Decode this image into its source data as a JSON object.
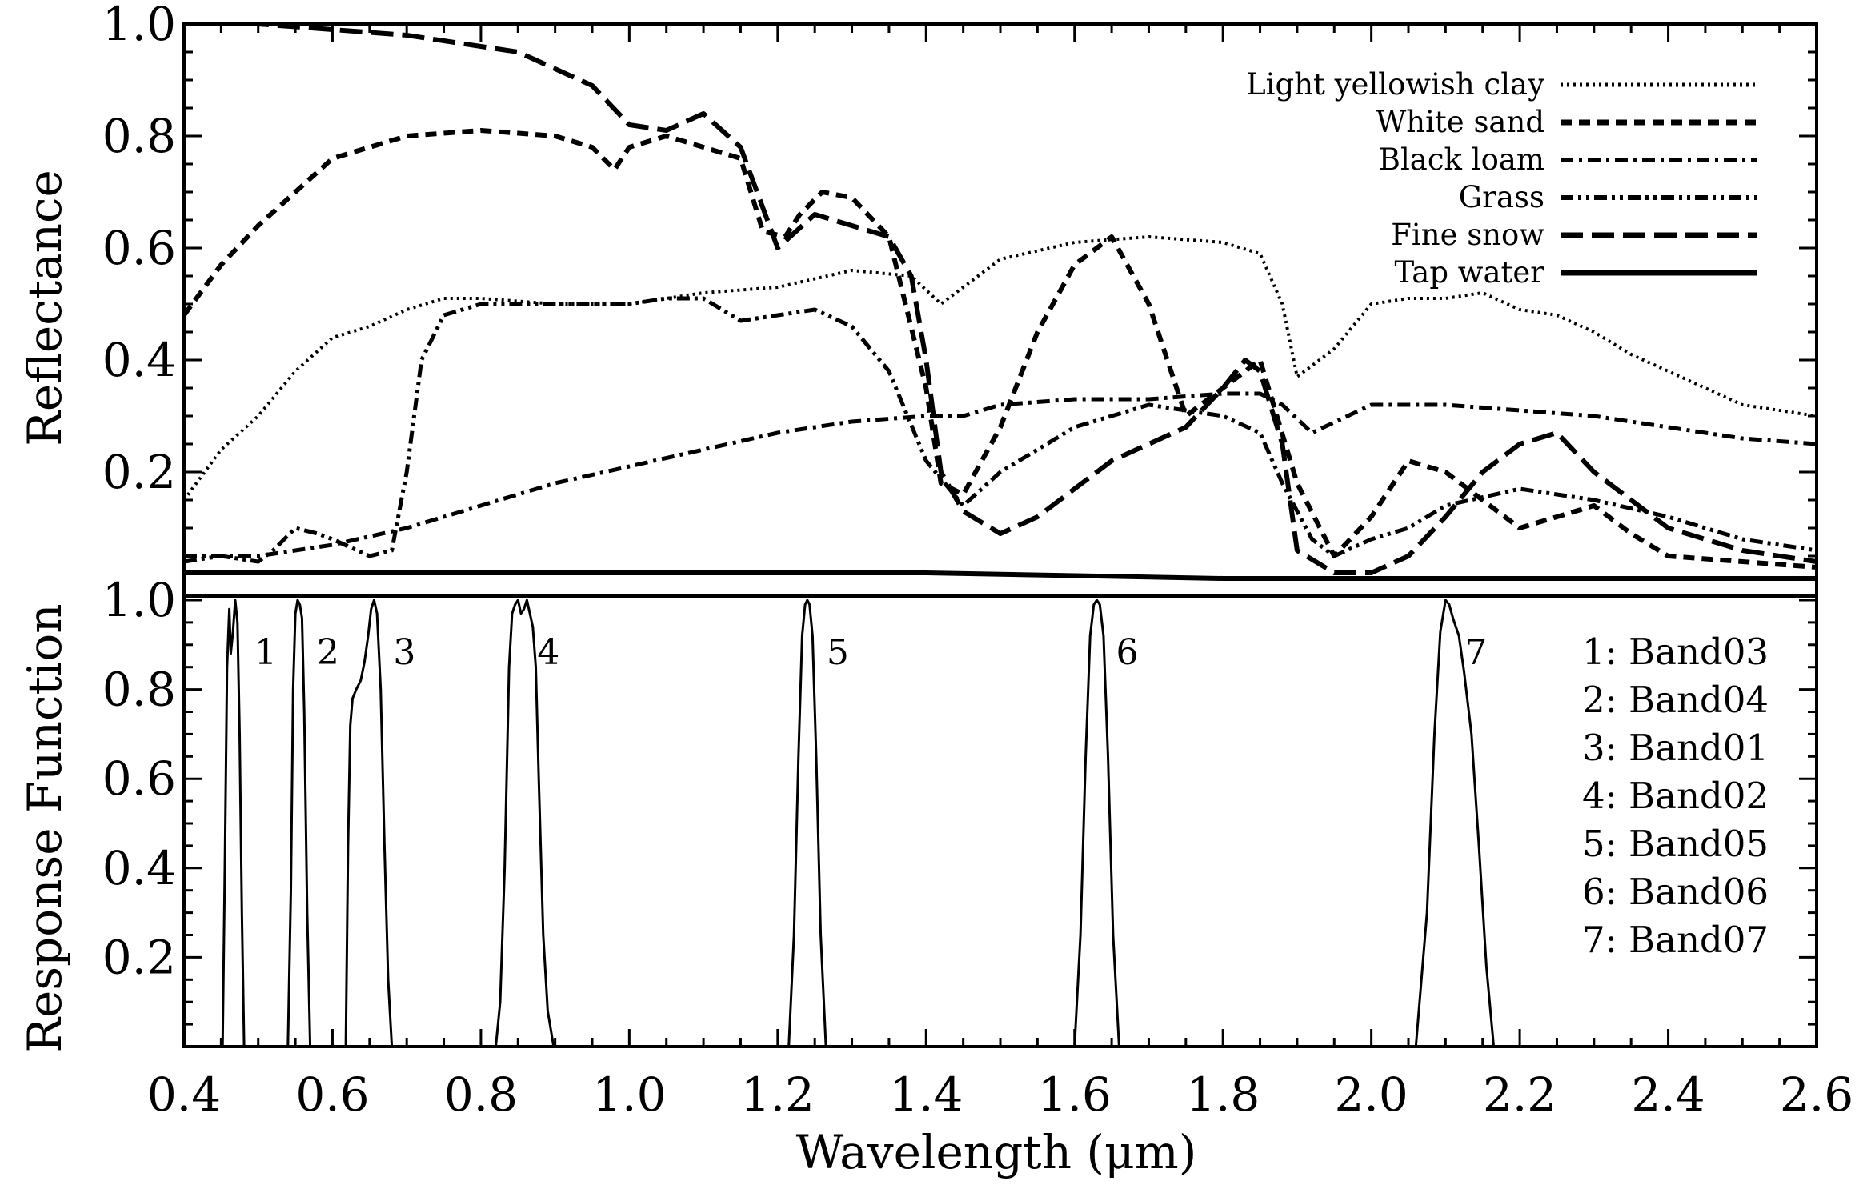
{
  "chart_data": [
    {
      "type": "line",
      "panel": "top",
      "ylabel": "Reflectance",
      "xlim": [
        0.4,
        2.6
      ],
      "ylim": [
        0.0,
        1.0
      ],
      "yticks": [
        0.2,
        0.4,
        0.6,
        0.8,
        1.0
      ],
      "ytick_labels": [
        "0.2",
        "0.4",
        "0.6",
        "0.8",
        "1.0"
      ],
      "legend_position": "top-right",
      "series": [
        {
          "name": "Light yellowish clay",
          "style": "dotted",
          "x": [
            0.4,
            0.45,
            0.5,
            0.55,
            0.6,
            0.65,
            0.7,
            0.75,
            0.8,
            0.9,
            1.0,
            1.1,
            1.2,
            1.3,
            1.38,
            1.42,
            1.5,
            1.6,
            1.7,
            1.8,
            1.85,
            1.88,
            1.9,
            1.95,
            2.0,
            2.05,
            2.1,
            2.15,
            2.2,
            2.25,
            2.3,
            2.35,
            2.4,
            2.45,
            2.5,
            2.6
          ],
          "y": [
            0.15,
            0.24,
            0.3,
            0.38,
            0.44,
            0.46,
            0.49,
            0.51,
            0.51,
            0.5,
            0.5,
            0.52,
            0.53,
            0.56,
            0.55,
            0.5,
            0.58,
            0.61,
            0.62,
            0.61,
            0.59,
            0.5,
            0.37,
            0.42,
            0.5,
            0.51,
            0.51,
            0.52,
            0.49,
            0.48,
            0.45,
            0.41,
            0.38,
            0.35,
            0.32,
            0.3
          ]
        },
        {
          "name": "White sand",
          "style": "dashed",
          "x": [
            0.4,
            0.45,
            0.5,
            0.55,
            0.6,
            0.65,
            0.7,
            0.8,
            0.9,
            0.95,
            0.98,
            1.0,
            1.05,
            1.1,
            1.15,
            1.18,
            1.21,
            1.23,
            1.26,
            1.3,
            1.35,
            1.4,
            1.42,
            1.45,
            1.5,
            1.55,
            1.6,
            1.65,
            1.7,
            1.75,
            1.8,
            1.85,
            1.9,
            1.95,
            2.0,
            2.05,
            2.1,
            2.15,
            2.2,
            2.25,
            2.3,
            2.35,
            2.4,
            2.5,
            2.6
          ],
          "y": [
            0.48,
            0.57,
            0.64,
            0.7,
            0.76,
            0.78,
            0.8,
            0.81,
            0.8,
            0.78,
            0.74,
            0.78,
            0.8,
            0.78,
            0.76,
            0.63,
            0.62,
            0.66,
            0.7,
            0.69,
            0.62,
            0.35,
            0.18,
            0.16,
            0.28,
            0.45,
            0.57,
            0.62,
            0.5,
            0.3,
            0.35,
            0.4,
            0.18,
            0.05,
            0.12,
            0.22,
            0.2,
            0.15,
            0.1,
            0.12,
            0.14,
            0.09,
            0.05,
            0.04,
            0.03
          ]
        },
        {
          "name": "Black loam",
          "style": "dash-dot",
          "x": [
            0.4,
            0.5,
            0.6,
            0.7,
            0.8,
            0.9,
            1.0,
            1.1,
            1.2,
            1.3,
            1.4,
            1.45,
            1.5,
            1.6,
            1.7,
            1.8,
            1.85,
            1.88,
            1.92,
            2.0,
            2.1,
            2.2,
            2.3,
            2.4,
            2.5,
            2.6
          ],
          "y": [
            0.05,
            0.05,
            0.07,
            0.1,
            0.14,
            0.18,
            0.21,
            0.24,
            0.27,
            0.29,
            0.3,
            0.3,
            0.32,
            0.33,
            0.33,
            0.34,
            0.34,
            0.32,
            0.27,
            0.32,
            0.32,
            0.31,
            0.3,
            0.28,
            0.26,
            0.25
          ]
        },
        {
          "name": "Grass",
          "style": "dash-dot-dot",
          "x": [
            0.4,
            0.45,
            0.5,
            0.52,
            0.55,
            0.58,
            0.6,
            0.65,
            0.68,
            0.7,
            0.72,
            0.75,
            0.8,
            0.9,
            1.0,
            1.05,
            1.1,
            1.15,
            1.2,
            1.25,
            1.3,
            1.35,
            1.4,
            1.45,
            1.5,
            1.6,
            1.7,
            1.75,
            1.8,
            1.85,
            1.88,
            1.92,
            1.95,
            2.0,
            2.05,
            2.1,
            2.2,
            2.25,
            2.3,
            2.4,
            2.5,
            2.6
          ],
          "y": [
            0.04,
            0.05,
            0.04,
            0.06,
            0.1,
            0.09,
            0.08,
            0.05,
            0.06,
            0.2,
            0.4,
            0.48,
            0.5,
            0.5,
            0.5,
            0.51,
            0.51,
            0.47,
            0.48,
            0.49,
            0.46,
            0.38,
            0.22,
            0.14,
            0.2,
            0.28,
            0.32,
            0.31,
            0.3,
            0.27,
            0.18,
            0.08,
            0.05,
            0.08,
            0.1,
            0.14,
            0.17,
            0.16,
            0.15,
            0.12,
            0.08,
            0.06
          ]
        },
        {
          "name": "Fine snow",
          "style": "long-dash",
          "x": [
            0.4,
            0.5,
            0.6,
            0.7,
            0.8,
            0.85,
            0.9,
            0.95,
            1.0,
            1.05,
            1.1,
            1.15,
            1.2,
            1.25,
            1.3,
            1.35,
            1.38,
            1.4,
            1.42,
            1.45,
            1.5,
            1.55,
            1.6,
            1.65,
            1.7,
            1.75,
            1.8,
            1.83,
            1.85,
            1.88,
            1.9,
            1.95,
            2.0,
            2.05,
            2.1,
            2.15,
            2.2,
            2.25,
            2.3,
            2.4,
            2.5,
            2.6
          ],
          "y": [
            1.0,
            1.0,
            0.99,
            0.98,
            0.96,
            0.95,
            0.92,
            0.89,
            0.82,
            0.81,
            0.84,
            0.78,
            0.6,
            0.66,
            0.64,
            0.62,
            0.55,
            0.4,
            0.2,
            0.13,
            0.09,
            0.12,
            0.17,
            0.22,
            0.25,
            0.28,
            0.35,
            0.4,
            0.38,
            0.25,
            0.06,
            0.02,
            0.02,
            0.05,
            0.12,
            0.2,
            0.25,
            0.27,
            0.2,
            0.1,
            0.06,
            0.04
          ]
        },
        {
          "name": "Tap water",
          "style": "solid",
          "x": [
            0.4,
            0.5,
            0.6,
            0.8,
            1.0,
            1.4,
            1.8,
            2.2,
            2.6
          ],
          "y": [
            0.02,
            0.02,
            0.02,
            0.02,
            0.02,
            0.02,
            0.01,
            0.01,
            0.01
          ]
        }
      ]
    },
    {
      "type": "line",
      "panel": "bottom",
      "xlabel": "Wavelength (μm)",
      "ylabel": "Response Function",
      "xlim": [
        0.4,
        2.6
      ],
      "ylim": [
        0.0,
        1.0
      ],
      "xticks": [
        0.4,
        0.6,
        0.8,
        1.0,
        1.2,
        1.4,
        1.6,
        1.8,
        2.0,
        2.2,
        2.4,
        2.6
      ],
      "xtick_labels": [
        "0.4",
        "0.6",
        "0.8",
        "1.0",
        "1.2",
        "1.4",
        "1.6",
        "1.8",
        "2.0",
        "2.2",
        "2.4",
        "2.6"
      ],
      "yticks": [
        0.2,
        0.4,
        0.6,
        0.8,
        1.0
      ],
      "ytick_labels": [
        "0.2",
        "0.4",
        "0.6",
        "0.8",
        "1.0"
      ],
      "legend_position": "right",
      "series": [
        {
          "name": "1: Band03",
          "label": "1",
          "center": 0.465,
          "x": [
            0.452,
            0.455,
            0.458,
            0.461,
            0.463,
            0.466,
            0.469,
            0.472,
            0.475,
            0.478,
            0.481
          ],
          "y": [
            0,
            0.4,
            0.85,
            0.98,
            0.88,
            0.93,
            1.0,
            0.95,
            0.7,
            0.3,
            0
          ]
        },
        {
          "name": "2: Band04",
          "label": "2",
          "center": 0.555,
          "x": [
            0.54,
            0.544,
            0.547,
            0.55,
            0.553,
            0.556,
            0.559,
            0.562,
            0.566,
            0.57
          ],
          "y": [
            0,
            0.35,
            0.8,
            0.97,
            1.0,
            0.99,
            0.96,
            0.75,
            0.3,
            0
          ]
        },
        {
          "name": "3: Band01",
          "label": "3",
          "center": 0.645,
          "x": [
            0.618,
            0.621,
            0.624,
            0.627,
            0.632,
            0.638,
            0.643,
            0.648,
            0.652,
            0.656,
            0.66,
            0.665,
            0.67,
            0.675,
            0.68
          ],
          "y": [
            0,
            0.45,
            0.72,
            0.78,
            0.8,
            0.82,
            0.86,
            0.92,
            0.98,
            1.0,
            0.97,
            0.8,
            0.45,
            0.15,
            0
          ]
        },
        {
          "name": "4: Band02",
          "label": "4",
          "center": 0.858,
          "x": [
            0.82,
            0.826,
            0.832,
            0.838,
            0.842,
            0.846,
            0.85,
            0.854,
            0.858,
            0.862,
            0.866,
            0.87,
            0.874,
            0.878,
            0.884,
            0.89,
            0.898
          ],
          "y": [
            0,
            0.1,
            0.4,
            0.85,
            0.97,
            0.99,
            1.0,
            0.97,
            0.98,
            1.0,
            0.97,
            0.94,
            0.85,
            0.6,
            0.25,
            0.08,
            0
          ]
        },
        {
          "name": "5: Band05",
          "label": "5",
          "center": 1.24,
          "x": [
            1.215,
            1.222,
            1.228,
            1.233,
            1.237,
            1.24,
            1.243,
            1.247,
            1.252,
            1.258,
            1.265
          ],
          "y": [
            0,
            0.25,
            0.65,
            0.92,
            0.99,
            1.0,
            0.99,
            0.92,
            0.65,
            0.25,
            0
          ]
        },
        {
          "name": "6: Band06",
          "label": "6",
          "center": 1.64,
          "x": [
            1.6,
            1.608,
            1.615,
            1.621,
            1.626,
            1.63,
            1.634,
            1.639,
            1.645,
            1.652,
            1.66
          ],
          "y": [
            0,
            0.25,
            0.65,
            0.92,
            0.99,
            1.0,
            0.99,
            0.92,
            0.65,
            0.25,
            0
          ]
        },
        {
          "name": "7: Band07",
          "label": "7",
          "center": 2.13,
          "x": [
            2.06,
            2.075,
            2.085,
            2.093,
            2.1,
            2.105,
            2.11,
            2.118,
            2.125,
            2.135,
            2.145,
            2.155,
            2.165
          ],
          "y": [
            0,
            0.3,
            0.7,
            0.93,
            1.0,
            0.99,
            0.96,
            0.92,
            0.84,
            0.7,
            0.45,
            0.18,
            0
          ]
        }
      ]
    }
  ]
}
